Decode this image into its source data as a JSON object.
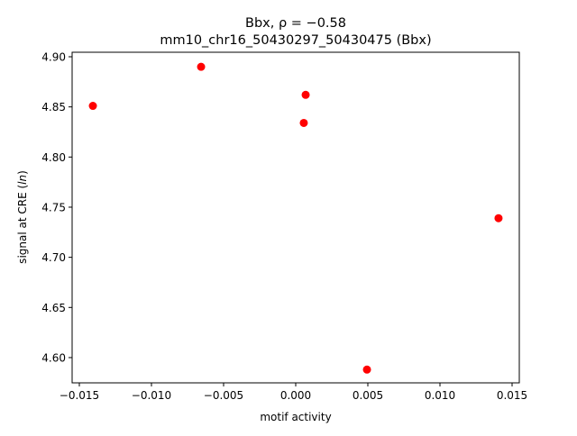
{
  "chart_data": {
    "type": "scatter",
    "title_line1": "Bbx, ρ = −0.58",
    "title_line2": "mm10_chr16_50430297_50430475 (Bbx)",
    "xlabel": "motif activity",
    "ylabel_prefix": "signal at CRE (",
    "ylabel_italic": "ln",
    "ylabel_suffix": ")",
    "xlim": [
      -0.0155,
      0.0155
    ],
    "ylim": [
      4.5748,
      4.9045
    ],
    "xticks": [
      -0.015,
      -0.01,
      -0.005,
      0.0,
      0.005,
      0.01,
      0.015
    ],
    "xtick_labels": [
      "−0.015",
      "−0.010",
      "−0.005",
      "0.000",
      "0.005",
      "0.010",
      "0.015"
    ],
    "yticks": [
      4.6,
      4.65,
      4.7,
      4.75,
      4.8,
      4.85,
      4.9
    ],
    "ytick_labels": [
      "4.60",
      "4.65",
      "4.70",
      "4.75",
      "4.80",
      "4.85",
      "4.90"
    ],
    "grid": false,
    "marker_color": "#ff0000",
    "points": [
      {
        "x": -0.01406,
        "y": 4.851
      },
      {
        "x": -0.00656,
        "y": 4.89
      },
      {
        "x": 0.00069,
        "y": 4.862
      },
      {
        "x": 0.00056,
        "y": 4.834
      },
      {
        "x": 0.01406,
        "y": 4.739
      },
      {
        "x": 0.00494,
        "y": 4.588
      }
    ]
  }
}
